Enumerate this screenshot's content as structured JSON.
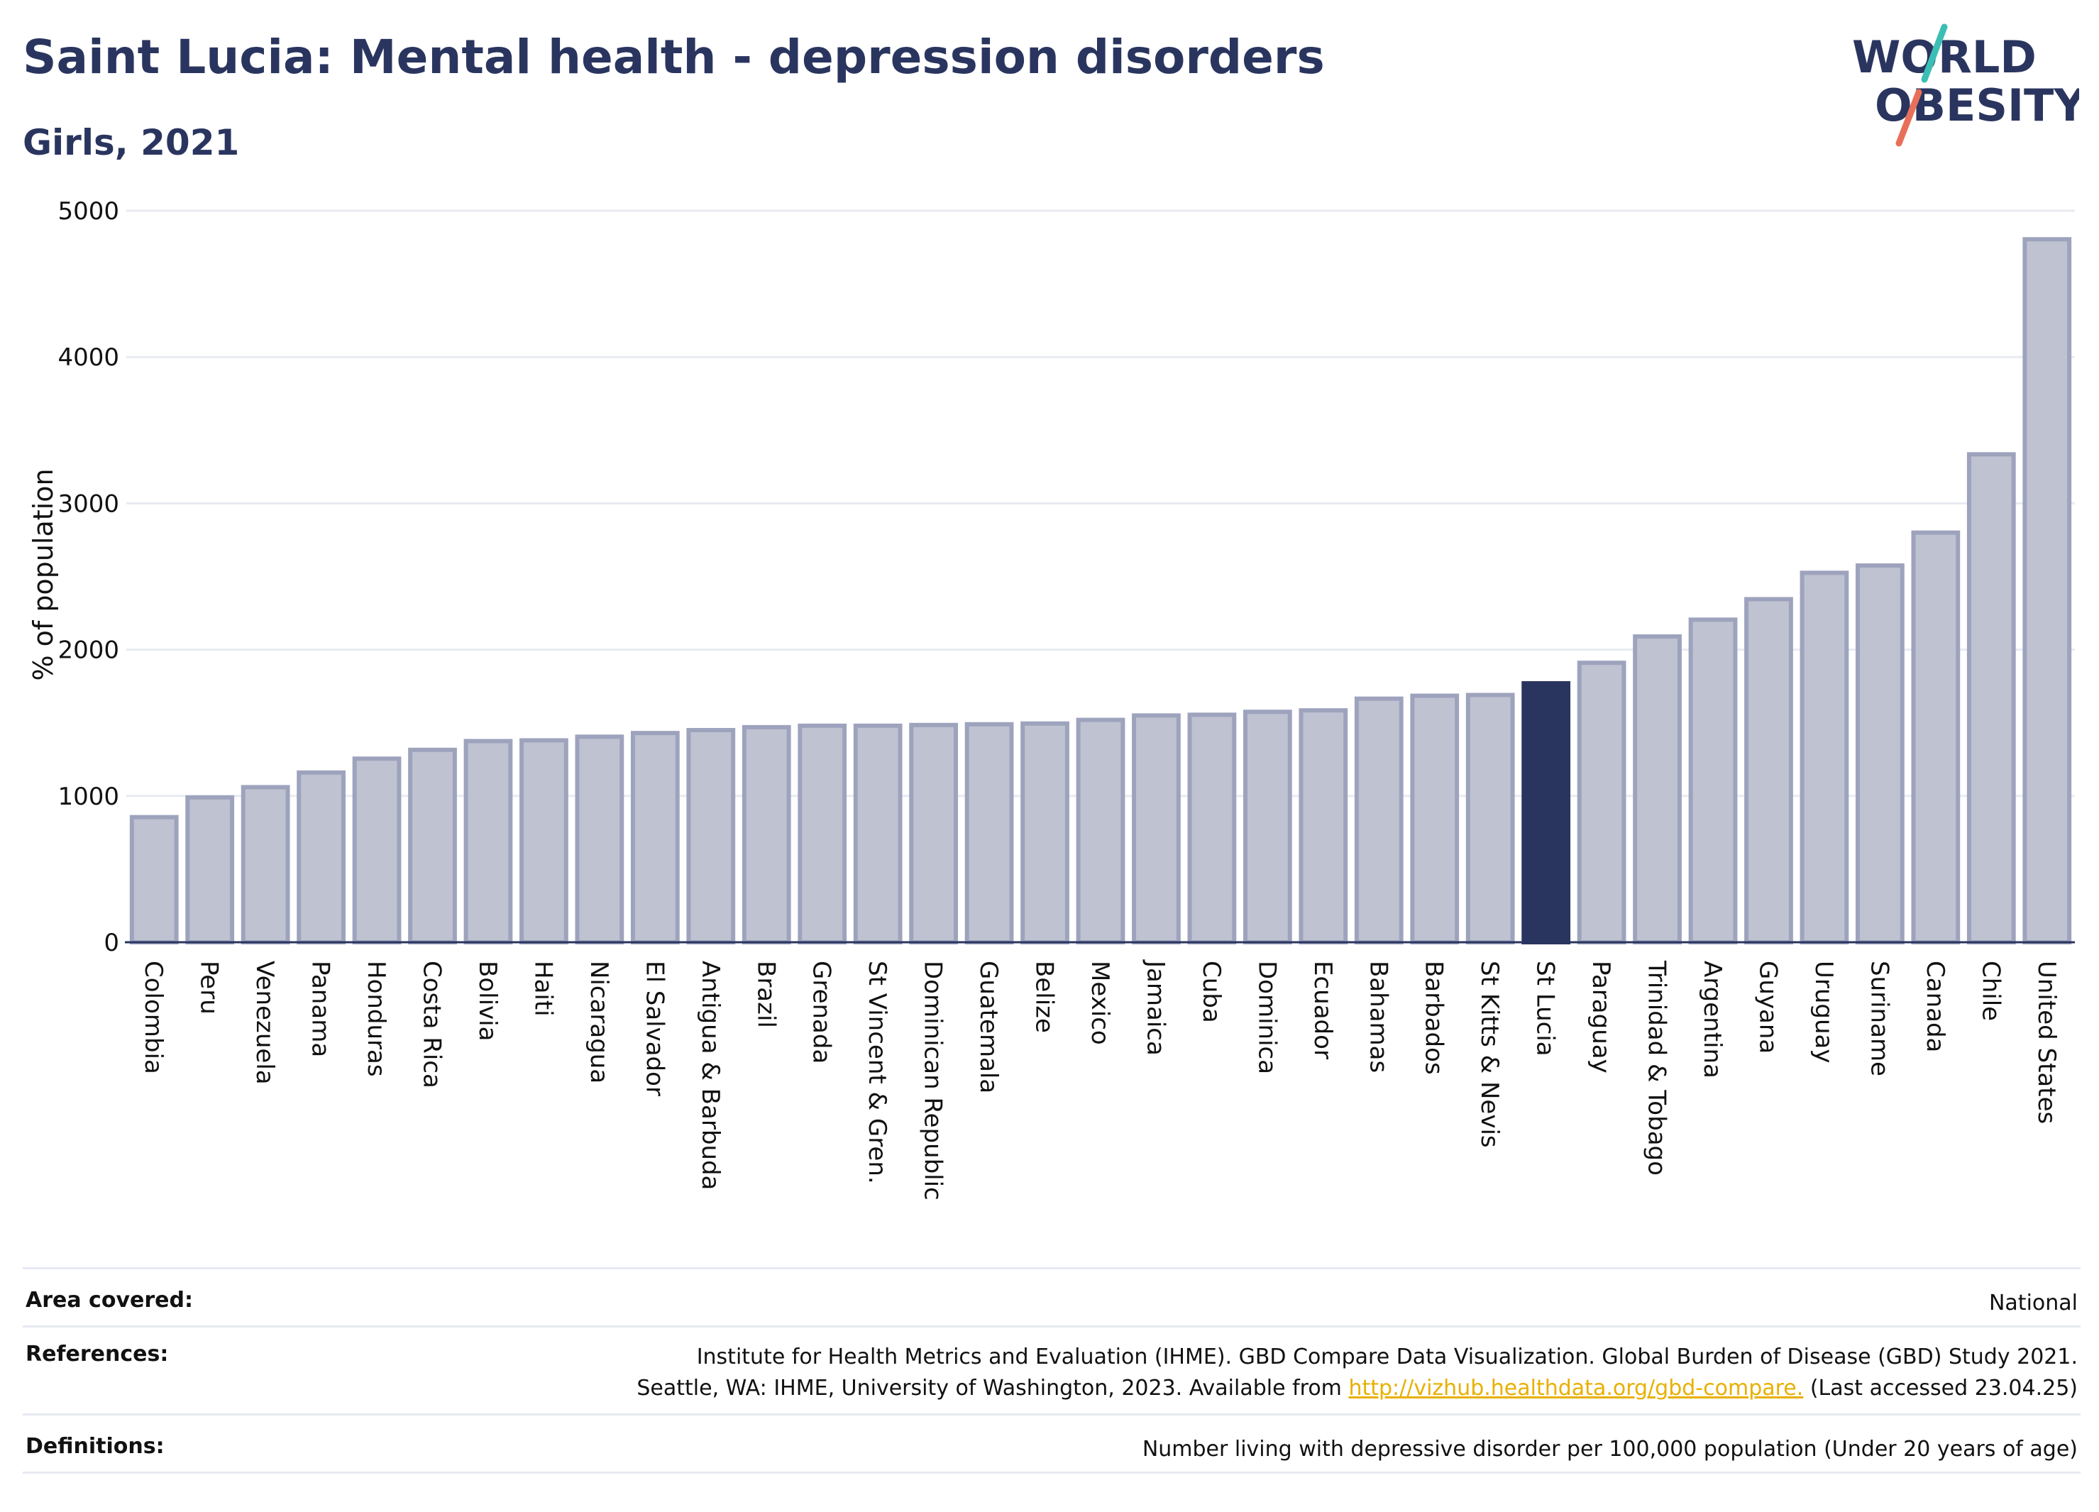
{
  "header": {
    "title": "Saint Lucia: Mental health - depression disorders",
    "subtitle": "Girls, 2021"
  },
  "logo": {
    "line1": "WORLD",
    "line2": "OBESITY",
    "colors": {
      "text": "#2a355f",
      "slash_top": "#3bbfb4",
      "slash_bottom": "#e8705a"
    }
  },
  "colors": {
    "bar": "#bfc2d1",
    "bar_border": "#9ea3bd",
    "highlight": "#2a355f",
    "grid": "#e8eaf2",
    "axis": "#2a355f"
  },
  "chart_data": {
    "type": "bar",
    "title": "Saint Lucia: Mental health - depression disorders",
    "subtitle": "Girls, 2021",
    "xlabel": "",
    "ylabel": "% of population",
    "ylim": [
      0,
      5000
    ],
    "yticks": [
      0,
      1000,
      2000,
      3000,
      4000,
      5000
    ],
    "grid": true,
    "highlight": "St Lucia",
    "categories": [
      "Colombia",
      "Peru",
      "Venezuela",
      "Panama",
      "Honduras",
      "Costa Rica",
      "Bolivia",
      "Haiti",
      "Nicaragua",
      "El Salvador",
      "Antigua & Barbuda",
      "Brazil",
      "Grenada",
      "St Vincent & Gren.",
      "Dominican Republic",
      "Guatemala",
      "Belize",
      "Mexico",
      "Jamaica",
      "Cuba",
      "Dominica",
      "Ecuador",
      "Bahamas",
      "Barbados",
      "St Kitts & Nevis",
      "St Lucia",
      "Paraguay",
      "Trinidad & Tobago",
      "Argentina",
      "Guyana",
      "Uruguay",
      "Suriname",
      "Canada",
      "Chile",
      "United States"
    ],
    "values": [
      855,
      990,
      1060,
      1160,
      1255,
      1315,
      1375,
      1380,
      1405,
      1430,
      1450,
      1470,
      1480,
      1480,
      1485,
      1490,
      1495,
      1520,
      1550,
      1555,
      1575,
      1585,
      1665,
      1685,
      1690,
      1770,
      1910,
      2090,
      2205,
      2345,
      2525,
      2575,
      2800,
      3335,
      4805
    ]
  },
  "footer": {
    "area_label": "Area covered:",
    "area_value": "National",
    "refs_label": "References:",
    "refs_line1": "Institute for Health Metrics and Evaluation (IHME). GBD Compare Data Visualization. Global Burden of Disease (GBD) Study 2021.",
    "refs_line2_pre": "Seattle, WA: IHME, University of Washington, 2023. Available from ",
    "refs_link": "http://vizhub.healthdata.org/gbd-compare.",
    "refs_line2_post": " (Last accessed 23.04.25)",
    "defs_label": "Definitions:",
    "defs_value": "Number living with depressive disorder per 100,000 population (Under 20 years of age)"
  }
}
